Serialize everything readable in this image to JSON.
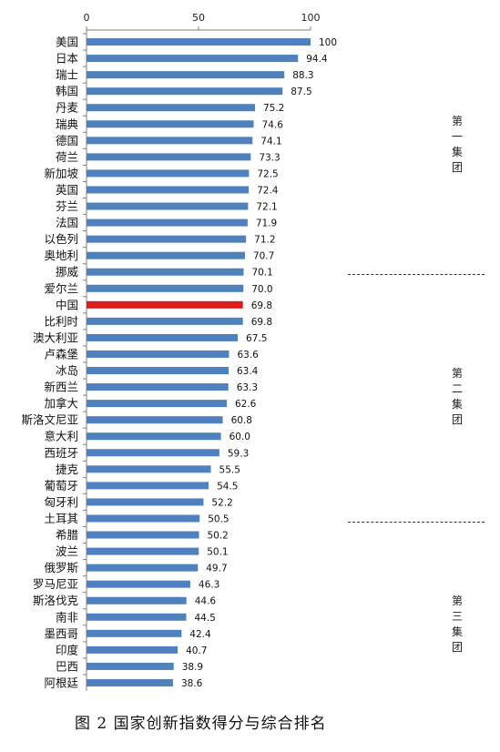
{
  "caption": "图 2  国家创新指数得分与综合排名",
  "groups": [
    {
      "label": "第一集团"
    },
    {
      "label": "第二集团"
    },
    {
      "label": "第三集团"
    }
  ],
  "chart_data": {
    "type": "bar",
    "orientation": "horizontal",
    "title": "",
    "xlabel": "",
    "ylabel": "",
    "xlim": [
      0,
      100
    ],
    "xticks": [
      0,
      50,
      100
    ],
    "axis_position": "top",
    "bar_color": "#4f81bd",
    "highlight_color": "#d81e1e",
    "highlight_category": "中国",
    "categories": [
      "美国",
      "日本",
      "瑞士",
      "韩国",
      "丹麦",
      "瑞典",
      "德国",
      "荷兰",
      "新加坡",
      "英国",
      "芬兰",
      "法国",
      "以色列",
      "奥地利",
      "挪威",
      "爱尔兰",
      "中国",
      "比利时",
      "澳大利亚",
      "卢森堡",
      "冰岛",
      "新西兰",
      "加拿大",
      "斯洛文尼亚",
      "意大利",
      "西班牙",
      "捷克",
      "葡萄牙",
      "匈牙利",
      "土耳其",
      "希腊",
      "波兰",
      "俄罗斯",
      "罗马尼亚",
      "斯洛伐克",
      "南非",
      "墨西哥",
      "印度",
      "巴西",
      "阿根廷"
    ],
    "values": [
      100,
      94.4,
      88.3,
      87.5,
      75.2,
      74.6,
      74.1,
      73.3,
      72.5,
      72.4,
      72.1,
      71.9,
      71.2,
      70.7,
      70.1,
      70.0,
      69.8,
      69.8,
      67.5,
      63.6,
      63.4,
      63.3,
      62.6,
      60.8,
      60.0,
      59.3,
      55.5,
      54.5,
      52.2,
      50.5,
      50.2,
      50.1,
      49.7,
      46.3,
      44.6,
      44.5,
      42.4,
      40.7,
      38.9,
      38.6
    ],
    "value_labels": [
      "100",
      "94.4",
      "88.3",
      "87.5",
      "75.2",
      "74.6",
      "74.1",
      "73.3",
      "72.5",
      "72.4",
      "72.1",
      "71.9",
      "71.2",
      "70.7",
      "70.1",
      "70.0",
      "69.8",
      "69.8",
      "67.5",
      "63.6",
      "63.4",
      "63.3",
      "62.6",
      "60.8",
      "60.0",
      "59.3",
      "55.5",
      "54.5",
      "52.2",
      "50.5",
      "50.2",
      "50.1",
      "49.7",
      "46.3",
      "44.6",
      "44.5",
      "42.4",
      "40.7",
      "38.9",
      "38.6"
    ]
  }
}
